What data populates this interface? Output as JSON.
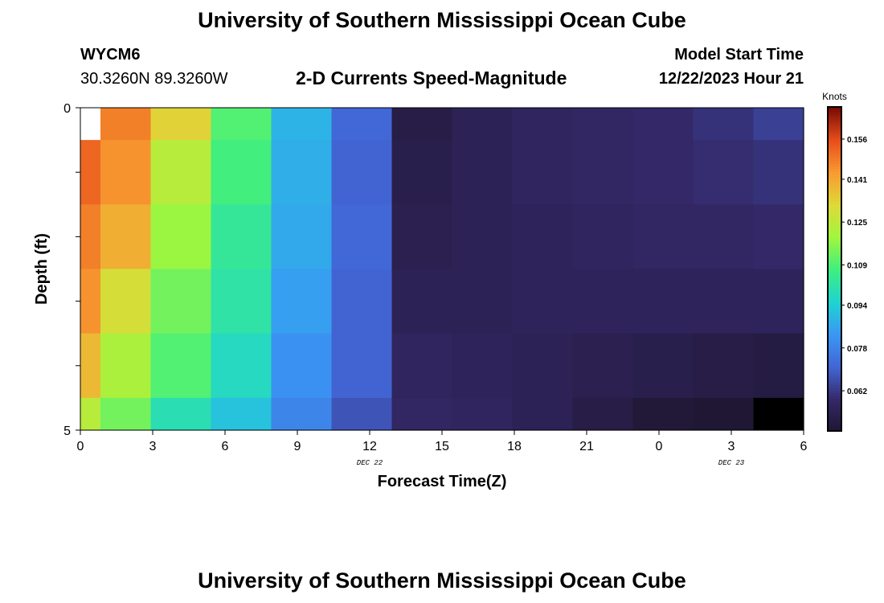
{
  "page": {
    "title": "University of Southern Mississippi Ocean Cube",
    "footer_title": "University of Southern Mississippi Ocean Cube",
    "station": "WYCM6",
    "coordinates": "30.3260N  89.3260W",
    "model_start_label": "Model Start Time",
    "model_start_value": "12/22/2023 Hour 21",
    "subtitle": "2-D Currents Speed-Magnitude"
  },
  "chart_data": {
    "type": "heatmap",
    "xlabel": "Forecast Time(Z)",
    "ylabel": "Depth (ft)",
    "x_ticks": [
      "0",
      "3",
      "6",
      "9",
      "12",
      "15",
      "18",
      "21",
      "0",
      "3",
      "6"
    ],
    "x_date_labels": [
      {
        "text": "DEC 22",
        "at_tick": 4
      },
      {
        "text": "DEC 23",
        "at_tick": 9
      }
    ],
    "y_tick_labels": [
      "0",
      "5"
    ],
    "ylim": [
      0,
      5
    ],
    "colorbar": {
      "label": "Knots",
      "ticks": [
        "0.156",
        "0.141",
        "0.125",
        "0.109",
        "0.094",
        "0.078",
        "0.062"
      ],
      "vmin": 0.047,
      "vmax": 0.168
    },
    "rows_depth_ft": [
      0,
      1,
      2,
      3,
      4,
      5
    ],
    "cols_forecast_hour": [
      0,
      2,
      5,
      8,
      11,
      14,
      17,
      20,
      23,
      26,
      29,
      32,
      35
    ],
    "values": [
      [
        null,
        0.148,
        0.133,
        0.11,
        0.089,
        0.072,
        0.052,
        0.055,
        0.057,
        0.058,
        0.059,
        0.061,
        0.064
      ],
      [
        0.152,
        0.145,
        0.124,
        0.108,
        0.088,
        0.071,
        0.053,
        0.055,
        0.057,
        0.058,
        0.059,
        0.06,
        0.061
      ],
      [
        0.148,
        0.14,
        0.119,
        0.104,
        0.087,
        0.072,
        0.054,
        0.055,
        0.056,
        0.057,
        0.058,
        0.058,
        0.059
      ],
      [
        0.145,
        0.13,
        0.114,
        0.102,
        0.085,
        0.071,
        0.055,
        0.055,
        0.056,
        0.056,
        0.056,
        0.056,
        0.056
      ],
      [
        0.138,
        0.122,
        0.11,
        0.098,
        0.082,
        0.071,
        0.057,
        0.056,
        0.055,
        0.054,
        0.053,
        0.052,
        0.051
      ],
      [
        0.124,
        0.114,
        0.1,
        0.092,
        0.079,
        0.068,
        0.058,
        0.057,
        0.055,
        0.052,
        0.049,
        0.048,
        0.03
      ]
    ]
  }
}
